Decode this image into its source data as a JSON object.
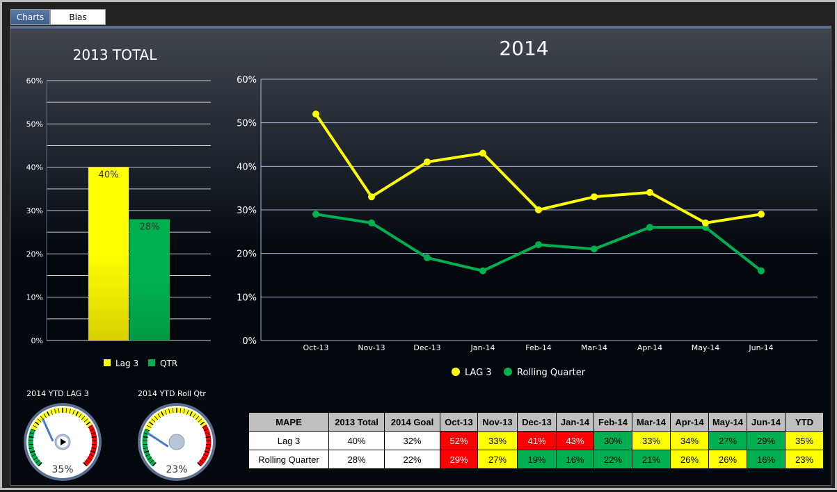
{
  "tabs": [
    {
      "label": "Charts",
      "active": true
    },
    {
      "label": "Bias",
      "active": false
    }
  ],
  "colors": {
    "lag3": "#ffff00",
    "qtr": "#00b050",
    "red": "#ff0000",
    "yellow": "#ffff00",
    "green": "#00b050"
  },
  "chart_data": [
    {
      "type": "bar",
      "title": "2013 TOTAL",
      "categories": [
        "Lag 3",
        "QTR"
      ],
      "values": [
        40,
        28
      ],
      "data_labels": [
        "40%",
        "28%"
      ],
      "ylim": [
        0,
        60
      ],
      "yticks": [
        "0%",
        "10%",
        "20%",
        "30%",
        "40%",
        "50%",
        "60%"
      ],
      "grid": true,
      "legend": {
        "placement": "bottom",
        "entries": [
          "Lag 3",
          "QTR"
        ]
      }
    },
    {
      "type": "line",
      "title": "2014",
      "categories": [
        "Oct-13",
        "Nov-13",
        "Dec-13",
        "Jan-14",
        "Feb-14",
        "Mar-14",
        "Apr-14",
        "May-14",
        "Jun-14"
      ],
      "series": [
        {
          "name": "LAG 3",
          "values": [
            52,
            33,
            41,
            43,
            30,
            33,
            34,
            27,
            29
          ]
        },
        {
          "name": "Rolling Quarter",
          "values": [
            29,
            27,
            19,
            16,
            22,
            21,
            26,
            26,
            16
          ]
        }
      ],
      "ylim": [
        0,
        60
      ],
      "yticks": [
        "0%",
        "10%",
        "20%",
        "30%",
        "40%",
        "50%",
        "60%"
      ],
      "grid": true,
      "legend": {
        "placement": "bottom"
      }
    }
  ],
  "gauges": [
    {
      "title": "2014 YTD LAG 3",
      "value": 35,
      "label": "35%"
    },
    {
      "title": "2014 YTD Roll Qtr",
      "value": 23,
      "label": "23%"
    }
  ],
  "table": {
    "headers": [
      "MAPE",
      "2013 Total",
      "2014 Goal",
      "Oct-13",
      "Nov-13",
      "Dec-13",
      "Jan-14",
      "Feb-14",
      "Mar-14",
      "Apr-14",
      "May-14",
      "Jun-14",
      "YTD"
    ],
    "rows": [
      {
        "cells": [
          "Lag 3",
          "40%",
          "32%",
          "52%",
          "33%",
          "41%",
          "43%",
          "30%",
          "33%",
          "34%",
          "27%",
          "29%",
          "35%"
        ],
        "status": [
          "",
          "",
          "",
          "red",
          "yellow",
          "red",
          "red",
          "green",
          "yellow",
          "yellow",
          "green",
          "green",
          "yellow"
        ]
      },
      {
        "cells": [
          "Rolling Quarter",
          "28%",
          "22%",
          "29%",
          "27%",
          "19%",
          "16%",
          "22%",
          "21%",
          "26%",
          "26%",
          "16%",
          "23%"
        ],
        "status": [
          "",
          "",
          "",
          "red",
          "yellow",
          "green",
          "green",
          "green",
          "green",
          "yellow",
          "yellow",
          "green",
          "yellow"
        ]
      }
    ]
  }
}
